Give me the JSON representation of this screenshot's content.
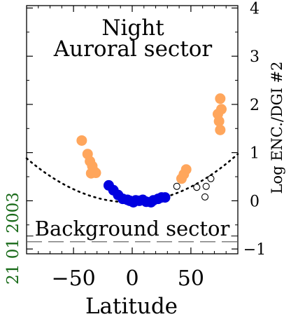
{
  "chart_data": {
    "type": "scatter",
    "date_label": "21 01 2003",
    "annotations": {
      "title_line1": "Night",
      "title_line2": "Auroral sector",
      "bottom": "Background sector"
    },
    "xlabel": "Latitude",
    "ylabel": "Log ENC./DGI #2",
    "xlim": [
      -90,
      90
    ],
    "ylim": [
      -1.1,
      4.05
    ],
    "x_ticks": [
      -50,
      0,
      50
    ],
    "x_tick_labels": [
      "−50",
      "0",
      "50"
    ],
    "y_ticks": [
      -1,
      0,
      1,
      2,
      3,
      4
    ],
    "y_tick_labels": [
      "−1",
      "0",
      "1",
      "2",
      "3",
      "4"
    ],
    "y_axis_side": "right",
    "grid": false,
    "legend": "none",
    "colors": {
      "orange": "#FFA65C",
      "blue": "#0000E0",
      "open": "#000000",
      "date": "#1A6B1A"
    },
    "series": [
      {
        "marker": "filled-circle",
        "color": "#FFA65C",
        "points": [
          [
            -43,
            1.25
          ],
          [
            -38,
            0.97
          ],
          [
            -36,
            0.82
          ],
          [
            -34,
            0.72
          ],
          [
            -32,
            0.6
          ],
          [
            -35,
            0.57
          ],
          [
            -31,
            0.58
          ],
          [
            46,
            0.65
          ],
          [
            44,
            0.55
          ],
          [
            42,
            0.46
          ],
          [
            75,
            2.12
          ],
          [
            76,
            1.9
          ],
          [
            73,
            1.8
          ],
          [
            74,
            1.65
          ],
          [
            75,
            1.47
          ]
        ]
      },
      {
        "marker": "filled-circle",
        "color": "#0000E0",
        "points": [
          [
            -20,
            0.32
          ],
          [
            -16,
            0.22
          ],
          [
            -12,
            0.12
          ],
          [
            -8,
            0.04
          ],
          [
            -4,
            0.02
          ],
          [
            -2,
            0.0
          ],
          [
            1,
            -0.03
          ],
          [
            3,
            0.01
          ],
          [
            6,
            0.0
          ],
          [
            9,
            0.02
          ],
          [
            12,
            -0.02
          ],
          [
            16,
            -0.03
          ],
          [
            18,
            0.01
          ],
          [
            22,
            0.04
          ],
          [
            25,
            0.07
          ],
          [
            28,
            0.07
          ]
        ]
      },
      {
        "marker": "open-circle",
        "color": "#000000",
        "points": [
          [
            38,
            0.3
          ],
          [
            55,
            0.28
          ],
          [
            62,
            0.08
          ],
          [
            63,
            0.3
          ],
          [
            67,
            0.46
          ]
        ]
      }
    ],
    "fit_curve": {
      "style": "dotted",
      "x": [
        -90,
        90
      ],
      "note": ""
    },
    "background_level": {
      "style": "dashed",
      "y": -0.85
    },
    "inner_hline": {
      "style": "solid",
      "y": -0.73
    }
  }
}
